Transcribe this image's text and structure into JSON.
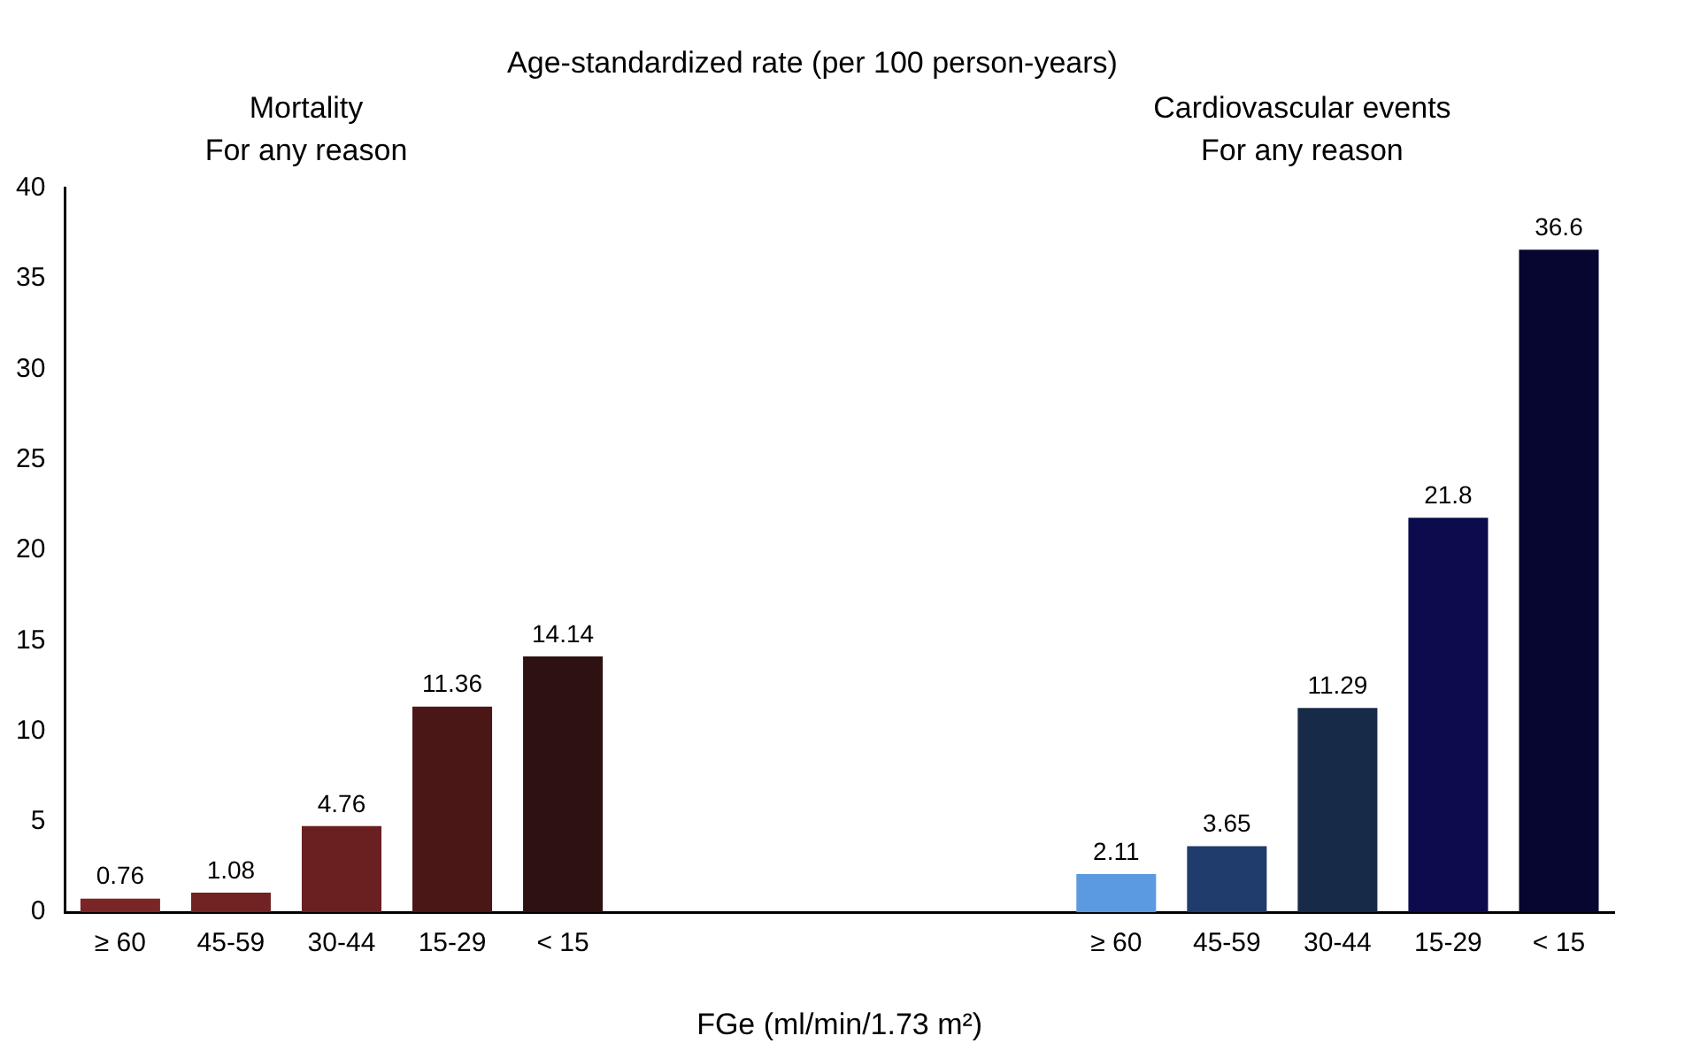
{
  "chart_data": {
    "type": "bar",
    "title": "Age-standardized rate (per 100 person-years)",
    "xlabel": "FGe (ml/min/1.73 m²)",
    "annotations": [
      "Mortality\nFor any reason",
      "Cardiovascular events\nFor any reason"
    ],
    "categories": [
      "≥ 60",
      "45-59",
      "30-44",
      "15-29",
      "< 15",
      null,
      null,
      null,
      null,
      "≥ 60",
      "45-59",
      "30-44",
      "15-29",
      "< 15"
    ],
    "values": [
      0.76,
      1.08,
      4.76,
      11.36,
      14.14,
      null,
      null,
      null,
      null,
      2.11,
      3.65,
      11.29,
      21.8,
      36.6
    ],
    "colors": [
      "#7b2626",
      "#702322",
      "#6a2020",
      "#4b1616",
      "#2e1111",
      null,
      null,
      null,
      null,
      "#5b9ae0",
      "#1f3c6c",
      "#172a48",
      "#0b0b4d",
      "#060630"
    ],
    "ylim": [
      0,
      40
    ],
    "yticks": [
      0,
      5,
      10,
      15,
      20,
      25,
      30,
      35,
      40
    ],
    "grid": false,
    "legend": false,
    "data_labels": true
  }
}
